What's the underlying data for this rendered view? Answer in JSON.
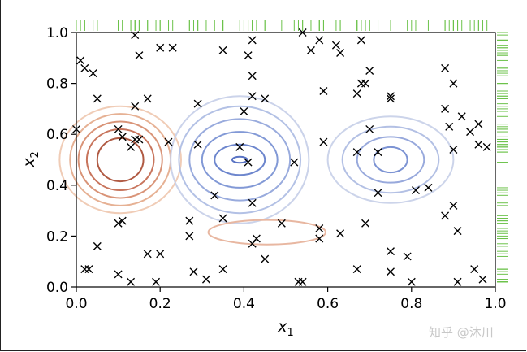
{
  "chart_data": {
    "type": "scatter",
    "title": "",
    "xlabel": "x",
    "xlabel_sub": "1",
    "ylabel": "x",
    "ylabel_sub": "2",
    "xlim": [
      0.0,
      1.0
    ],
    "ylim": [
      0.0,
      1.0
    ],
    "x_ticks": [
      "0.0",
      "0.2",
      "0.4",
      "0.6",
      "0.8",
      "1.0"
    ],
    "y_ticks": [
      "0.0",
      "0.2",
      "0.4",
      "0.6",
      "0.8",
      "1.0"
    ],
    "grid": false,
    "marker": "x",
    "marker_color": "#000000",
    "rug_color": "#6cc24a",
    "points": [
      [
        0.14,
        0.99
      ],
      [
        0.01,
        0.89
      ],
      [
        0.02,
        0.86
      ],
      [
        0.04,
        0.84
      ],
      [
        0.15,
        0.91
      ],
      [
        0.2,
        0.94
      ],
      [
        0.23,
        0.94
      ],
      [
        0.35,
        0.93
      ],
      [
        0.41,
        0.91
      ],
      [
        0.42,
        0.97
      ],
      [
        0.54,
        1.0
      ],
      [
        0.56,
        0.93
      ],
      [
        0.58,
        0.97
      ],
      [
        0.62,
        0.95
      ],
      [
        0.63,
        0.92
      ],
      [
        0.68,
        0.97
      ],
      [
        0.69,
        0.8
      ],
      [
        0.7,
        0.85
      ],
      [
        0.68,
        0.8
      ],
      [
        0.75,
        0.75
      ],
      [
        0.75,
        0.74
      ],
      [
        0.88,
        0.86
      ],
      [
        0.9,
        0.8
      ],
      [
        0.05,
        0.74
      ],
      [
        0.14,
        0.71
      ],
      [
        0.17,
        0.74
      ],
      [
        0.29,
        0.72
      ],
      [
        0.42,
        0.83
      ],
      [
        0.42,
        0.75
      ],
      [
        0.45,
        0.74
      ],
      [
        0.59,
        0.77
      ],
      [
        0.67,
        0.76
      ],
      [
        0.4,
        0.69
      ],
      [
        0.88,
        0.7
      ],
      [
        0.92,
        0.67
      ],
      [
        0.94,
        0.61
      ],
      [
        0.96,
        0.64
      ],
      [
        0.98,
        0.55
      ],
      [
        0.96,
        0.56
      ],
      [
        0.89,
        0.63
      ],
      [
        0.0,
        0.62
      ],
      [
        0.1,
        0.62
      ],
      [
        0.11,
        0.59
      ],
      [
        0.14,
        0.58
      ],
      [
        0.15,
        0.58
      ],
      [
        0.13,
        0.55
      ],
      [
        0.22,
        0.57
      ],
      [
        0.29,
        0.56
      ],
      [
        0.39,
        0.55
      ],
      [
        0.41,
        0.49
      ],
      [
        0.52,
        0.49
      ],
      [
        0.59,
        0.57
      ],
      [
        0.67,
        0.53
      ],
      [
        0.7,
        0.62
      ],
      [
        0.72,
        0.53
      ],
      [
        0.9,
        0.54
      ],
      [
        0.33,
        0.36
      ],
      [
        0.42,
        0.33
      ],
      [
        0.72,
        0.37
      ],
      [
        0.81,
        0.38
      ],
      [
        0.84,
        0.39
      ],
      [
        0.9,
        0.32
      ],
      [
        0.88,
        0.28
      ],
      [
        0.1,
        0.25
      ],
      [
        0.11,
        0.26
      ],
      [
        0.27,
        0.26
      ],
      [
        0.27,
        0.2
      ],
      [
        0.35,
        0.27
      ],
      [
        0.49,
        0.25
      ],
      [
        0.58,
        0.23
      ],
      [
        0.58,
        0.19
      ],
      [
        0.63,
        0.21
      ],
      [
        0.69,
        0.25
      ],
      [
        0.91,
        0.22
      ],
      [
        0.05,
        0.16
      ],
      [
        0.17,
        0.13
      ],
      [
        0.2,
        0.13
      ],
      [
        0.43,
        0.19
      ],
      [
        0.42,
        0.17
      ],
      [
        0.45,
        0.11
      ],
      [
        0.75,
        0.14
      ],
      [
        0.79,
        0.12
      ],
      [
        0.02,
        0.07
      ],
      [
        0.03,
        0.07
      ],
      [
        0.1,
        0.05
      ],
      [
        0.13,
        0.02
      ],
      [
        0.19,
        0.02
      ],
      [
        0.28,
        0.06
      ],
      [
        0.31,
        0.03
      ],
      [
        0.35,
        0.07
      ],
      [
        0.53,
        0.02
      ],
      [
        0.54,
        0.02
      ],
      [
        0.67,
        0.07
      ],
      [
        0.75,
        0.06
      ],
      [
        0.8,
        0.02
      ],
      [
        0.91,
        0.02
      ],
      [
        0.95,
        0.07
      ],
      [
        0.97,
        0.03
      ]
    ],
    "contours": [
      {
        "cx": 0.105,
        "cy": 0.5,
        "rx": [
          0.055,
          0.08,
          0.1,
          0.12,
          0.145
        ],
        "ry": [
          0.085,
          0.12,
          0.15,
          0.18,
          0.21
        ],
        "colors": [
          "#b05a43",
          "#c8755d",
          "#d99478",
          "#e6b194",
          "#f0ccb6"
        ]
      },
      {
        "cx": 0.39,
        "cy": 0.5,
        "rx": [
          0.018,
          0.06,
          0.09,
          0.12,
          0.145,
          0.165
        ],
        "ry": [
          0.012,
          0.06,
          0.11,
          0.16,
          0.21,
          0.25
        ],
        "colors": [
          "#5a74c4",
          "#6d86cd",
          "#8299d6",
          "#99abdd",
          "#b3c1e5",
          "#cbd3ea"
        ]
      },
      {
        "cx": 0.75,
        "cy": 0.5,
        "rx": [
          0.04,
          0.08,
          0.115,
          0.15
        ],
        "ry": [
          0.05,
          0.09,
          0.13,
          0.17
        ],
        "colors": [
          "#7c93d3",
          "#98a9dc",
          "#b3c0e4",
          "#ccd4ea"
        ]
      },
      {
        "cx": 0.455,
        "cy": 0.215,
        "rx": [
          0.14
        ],
        "ry": [
          0.048
        ],
        "colors": [
          "#e8b7a1"
        ]
      }
    ]
  },
  "watermark": "知乎 @沐川"
}
